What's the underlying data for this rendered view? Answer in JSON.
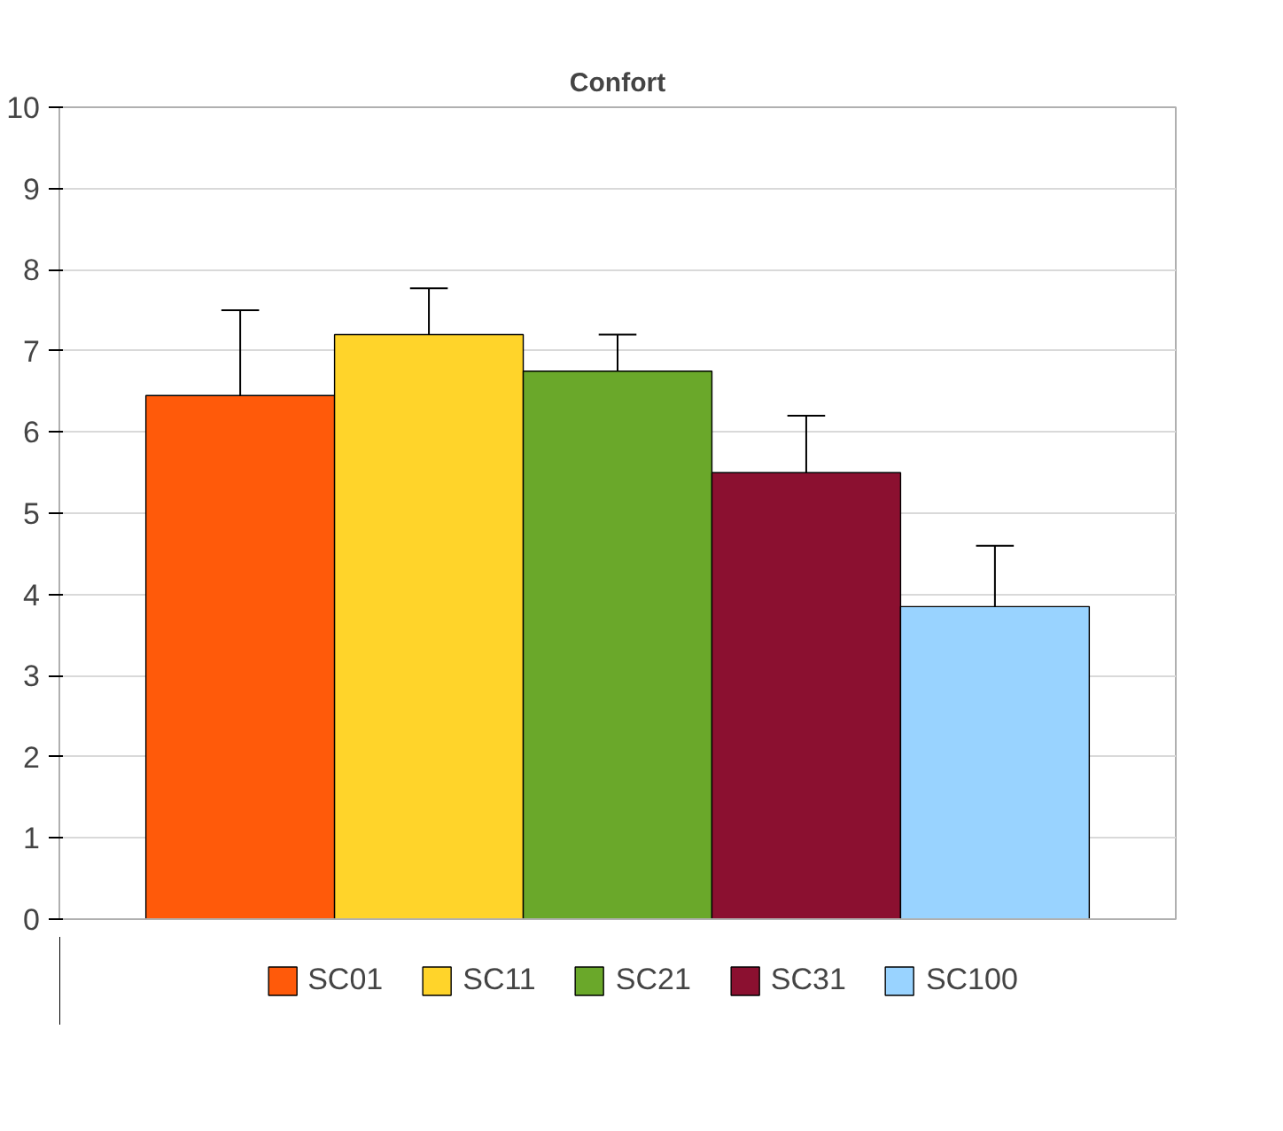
{
  "chart_data": {
    "type": "bar",
    "title": "Confort",
    "categories": [
      null
    ],
    "series": [
      {
        "name": "SC01",
        "color": "#ff5a0a",
        "values": [
          6.45
        ],
        "errors": [
          [
            6.45,
            7.5
          ]
        ]
      },
      {
        "name": "SC11",
        "color": "#ffd42a",
        "values": [
          7.2
        ],
        "errors": [
          [
            7.2,
            7.77
          ]
        ]
      },
      {
        "name": "SC21",
        "color": "#6aa82a",
        "values": [
          6.75
        ],
        "errors": [
          [
            6.75,
            7.2
          ]
        ]
      },
      {
        "name": "SC31",
        "color": "#8b1030",
        "values": [
          5.5
        ],
        "errors": [
          [
            5.5,
            6.2
          ]
        ]
      },
      {
        "name": "SC100",
        "color": "#99d3ff",
        "values": [
          3.85
        ],
        "errors": [
          [
            3.85,
            4.6
          ]
        ]
      }
    ],
    "ylim": [
      0,
      10
    ],
    "yticks": [
      0,
      1,
      2,
      3,
      4,
      5,
      6,
      7,
      8,
      9,
      10
    ],
    "grid": "y",
    "legend": "bottom"
  }
}
